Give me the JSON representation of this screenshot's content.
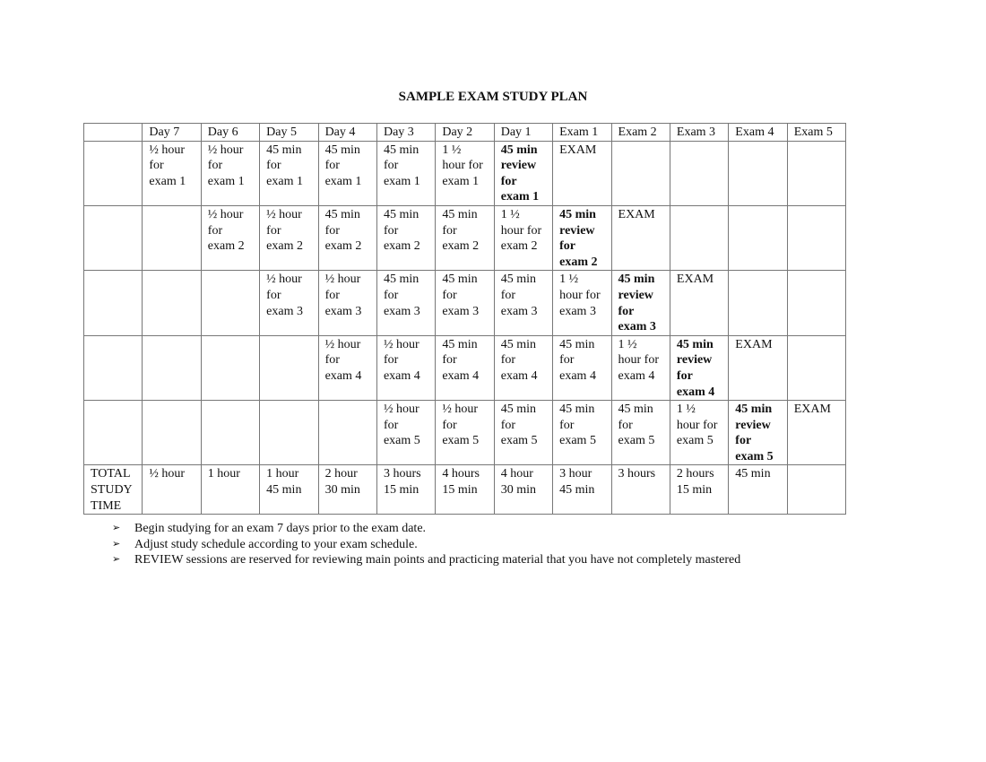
{
  "title": "SAMPLE EXAM STUDY PLAN",
  "table": {
    "headers": [
      "",
      "Day 7",
      "Day 6",
      "Day 5",
      "Day 4",
      "Day 3",
      "Day 2",
      "Day 1",
      "Exam 1",
      "Exam 2",
      "Exam 3",
      "Exam 4",
      "Exam 5"
    ],
    "rows": [
      [
        {
          "text": ""
        },
        {
          "text": "½ hour\nfor\nexam 1"
        },
        {
          "text": "½ hour\nfor\nexam 1"
        },
        {
          "text": "45 min\nfor\nexam 1"
        },
        {
          "text": "45 min\nfor\nexam 1"
        },
        {
          "text": "45 min\nfor\nexam 1"
        },
        {
          "text": "1 ½\nhour for\nexam 1"
        },
        {
          "text": "45 min\nreview\nfor\nexam 1",
          "bold": true
        },
        {
          "text": "EXAM"
        },
        {
          "text": ""
        },
        {
          "text": ""
        },
        {
          "text": ""
        },
        {
          "text": ""
        }
      ],
      [
        {
          "text": ""
        },
        {
          "text": ""
        },
        {
          "text": "½ hour\nfor\nexam 2"
        },
        {
          "text": "½ hour\nfor\nexam 2"
        },
        {
          "text": "45 min\nfor\nexam 2"
        },
        {
          "text": "45 min\nfor\nexam 2"
        },
        {
          "text": "45 min\nfor\nexam 2"
        },
        {
          "text": "1 ½\nhour for\nexam 2"
        },
        {
          "text": "45 min\nreview\nfor\nexam 2",
          "bold": true
        },
        {
          "text": "EXAM"
        },
        {
          "text": ""
        },
        {
          "text": ""
        },
        {
          "text": ""
        }
      ],
      [
        {
          "text": ""
        },
        {
          "text": ""
        },
        {
          "text": ""
        },
        {
          "text": "½ hour\nfor\nexam 3"
        },
        {
          "text": "½ hour\nfor\nexam 3"
        },
        {
          "text": "45 min\nfor\nexam 3"
        },
        {
          "text": "45 min\nfor\nexam 3"
        },
        {
          "text": "45 min\nfor\nexam 3"
        },
        {
          "text": "1 ½\nhour for\nexam 3"
        },
        {
          "text": "45 min\nreview\nfor\nexam 3",
          "bold": true
        },
        {
          "text": "EXAM"
        },
        {
          "text": ""
        },
        {
          "text": ""
        }
      ],
      [
        {
          "text": ""
        },
        {
          "text": ""
        },
        {
          "text": ""
        },
        {
          "text": ""
        },
        {
          "text": "½ hour\nfor\nexam 4"
        },
        {
          "text": "½ hour\nfor\nexam 4"
        },
        {
          "text": "45 min\nfor\nexam 4"
        },
        {
          "text": "45 min\nfor\nexam 4"
        },
        {
          "text": "45 min\nfor\nexam 4"
        },
        {
          "text": "1 ½\nhour for\nexam 4"
        },
        {
          "text": "45 min\nreview\nfor\nexam 4",
          "bold": true
        },
        {
          "text": "EXAM"
        },
        {
          "text": ""
        }
      ],
      [
        {
          "text": ""
        },
        {
          "text": ""
        },
        {
          "text": ""
        },
        {
          "text": ""
        },
        {
          "text": ""
        },
        {
          "text": "½ hour\nfor\nexam 5"
        },
        {
          "text": "½ hour\nfor\nexam 5"
        },
        {
          "text": "45 min\nfor\nexam 5"
        },
        {
          "text": "45 min\nfor\nexam 5"
        },
        {
          "text": "45 min\nfor\nexam 5"
        },
        {
          "text": "1 ½\nhour for\nexam 5"
        },
        {
          "text": "45 min\nreview\nfor\nexam 5",
          "bold": true
        },
        {
          "text": "EXAM"
        }
      ]
    ],
    "totals": [
      "TOTAL\nSTUDY\nTIME",
      "½ hour",
      "1 hour",
      "1 hour\n45 min",
      "2 hour\n30 min",
      "3 hours\n15 min",
      "4 hours\n15 min",
      "4 hour\n30 min",
      "3 hour\n45 min",
      "3 hours",
      "2 hours\n15 min",
      "45 min",
      ""
    ]
  },
  "notes": [
    "Begin studying for an exam 7 days prior to the exam date.",
    "Adjust study schedule according to your exam schedule.",
    "REVIEW sessions are reserved for reviewing main points and practicing material that you have not completely mastered"
  ],
  "bullet_icon": "arrowhead-bullet"
}
